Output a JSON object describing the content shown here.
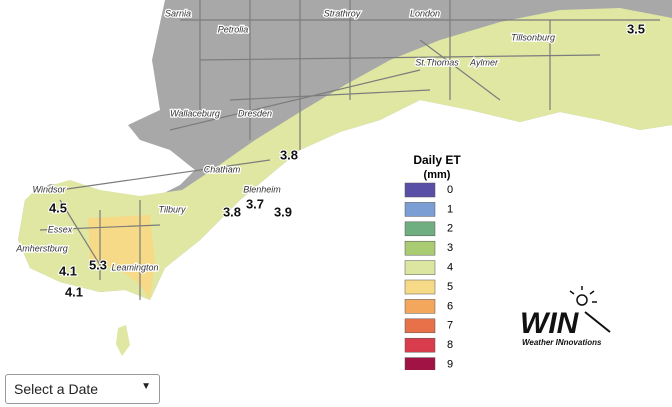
{
  "places": [
    "Sarnia",
    "Petrolia",
    "Strathroy",
    "London",
    "Tillsonburg",
    "St.Thomas",
    "Aylmer",
    "Wallaceburg",
    "Dresden",
    "Chatham",
    "Blenheim",
    "Windsor",
    "Tilbury",
    "Essex",
    "Amherstburg",
    "Leamington"
  ],
  "stations": [
    3.5,
    3.8,
    3.8,
    3.7,
    3.9,
    4.5,
    5.3,
    4.1,
    4.1
  ],
  "legend": {
    "title": "Daily ET",
    "unit": "(mm)",
    "items": [
      {
        "label": 0,
        "color": "#5a4fa6"
      },
      {
        "label": 1,
        "color": "#7b9fd4"
      },
      {
        "label": 2,
        "color": "#6fae80"
      },
      {
        "label": 3,
        "color": "#a9cb72"
      },
      {
        "label": 4,
        "color": "#dce6a0"
      },
      {
        "label": 5,
        "color": "#f6da87"
      },
      {
        "label": 6,
        "color": "#f3a75c"
      },
      {
        "label": 7,
        "color": "#e9714a"
      },
      {
        "label": 8,
        "color": "#d93c4c"
      },
      {
        "label": 9,
        "color": "#a11245"
      }
    ]
  },
  "logo": {
    "mark": "WIN",
    "tagline": "Weather INnovations"
  },
  "date_select": {
    "label": "Select a Date"
  }
}
